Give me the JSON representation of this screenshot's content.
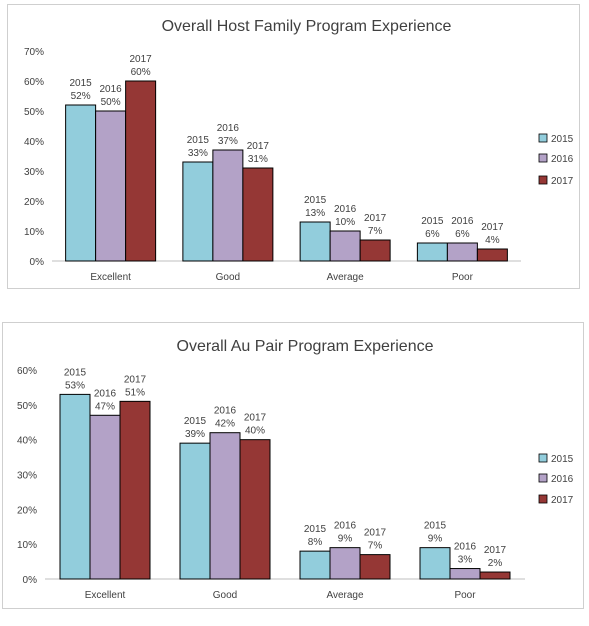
{
  "chart_data": [
    {
      "type": "bar",
      "title": "Overall Host Family Program Experience",
      "categories": [
        "Excellent",
        "Good",
        "Average",
        "Poor"
      ],
      "series": [
        {
          "name": "2015",
          "values": [
            52,
            33,
            13,
            6
          ],
          "color": "#92CDDC"
        },
        {
          "name": "2016",
          "values": [
            50,
            37,
            10,
            6
          ],
          "color": "#B3A2C7"
        },
        {
          "name": "2017",
          "values": [
            60,
            31,
            7,
            4
          ],
          "color": "#953735"
        }
      ],
      "y_ticks": [
        "0%",
        "10%",
        "20%",
        "30%",
        "40%",
        "50%",
        "60%",
        "70%"
      ],
      "ylim": [
        0,
        70
      ],
      "unit": "%",
      "legend_position": "right",
      "grid": false
    },
    {
      "type": "bar",
      "title": "Overall Au Pair Program Experience",
      "categories": [
        "Excellent",
        "Good",
        "Average",
        "Poor"
      ],
      "series": [
        {
          "name": "2015",
          "values": [
            53,
            39,
            8,
            9
          ],
          "color": "#92CDDC"
        },
        {
          "name": "2016",
          "values": [
            47,
            42,
            9,
            3
          ],
          "color": "#B3A2C7"
        },
        {
          "name": "2017",
          "values": [
            51,
            40,
            7,
            2
          ],
          "color": "#953735"
        }
      ],
      "y_ticks": [
        "0%",
        "10%",
        "20%",
        "30%",
        "40%",
        "50%",
        "60%"
      ],
      "ylim": [
        0,
        60
      ],
      "unit": "%",
      "legend_position": "right",
      "grid": false
    }
  ]
}
